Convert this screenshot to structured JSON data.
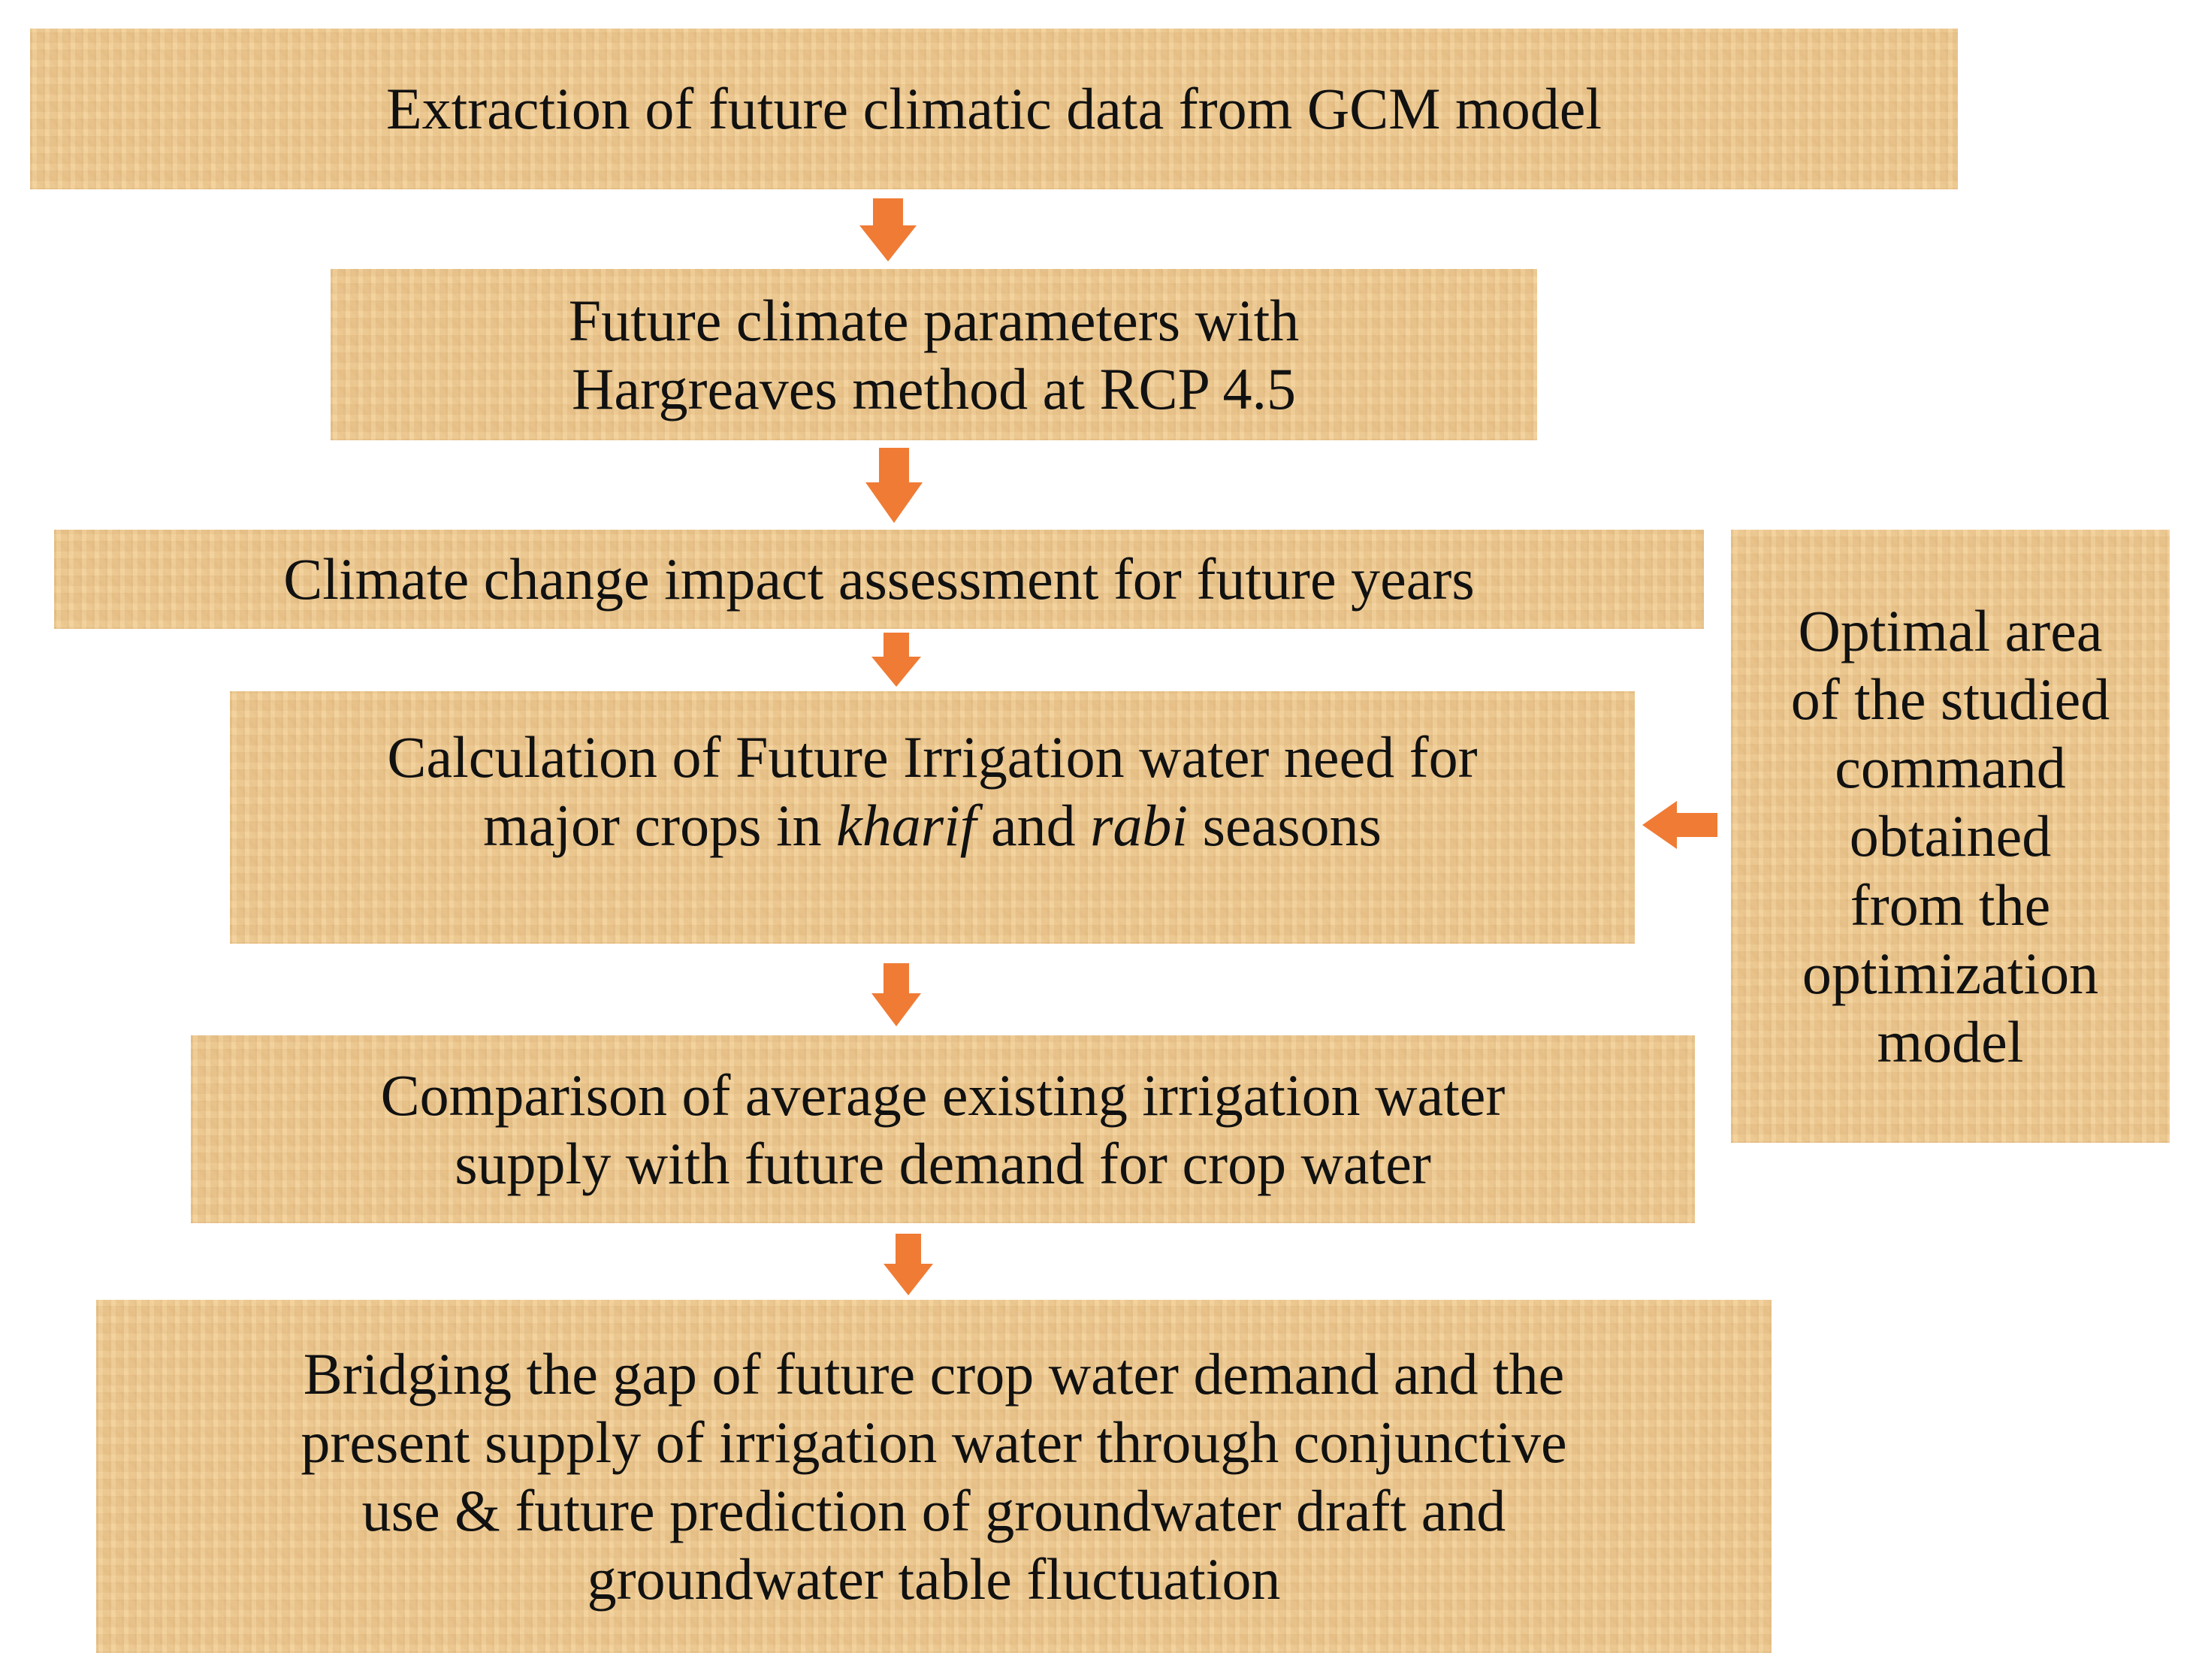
{
  "steps": [
    {
      "lines": [
        "Extraction of future climatic data from GCM model"
      ]
    },
    {
      "lines": [
        "Future climate parameters with",
        "Hargreaves method at RCP 4.5"
      ]
    },
    {
      "lines": [
        "Climate change impact assessment for future years"
      ]
    },
    {
      "line1": "Calculation of Future Irrigation water need for",
      "line2_a": "major crops in ",
      "line2_b": "kharif",
      "line2_c": " and ",
      "line2_d": "rabi",
      "line2_e": " seasons"
    },
    {
      "lines": [
        "Comparison of average existing irrigation water",
        "supply with future demand for crop water"
      ]
    },
    {
      "lines": [
        "Bridging the gap of future crop water demand and the",
        "present supply of irrigation water through conjunctive",
        "use & future prediction of groundwater draft and",
        "groundwater table fluctuation"
      ]
    }
  ],
  "side_input": {
    "lines": [
      "Optimal area",
      "of the studied",
      "command",
      "obtained",
      "from the",
      "optimization",
      "model"
    ]
  },
  "colors": {
    "box_fill": "#f1cd95",
    "arrow": "#f07b35",
    "text": "#111111"
  }
}
